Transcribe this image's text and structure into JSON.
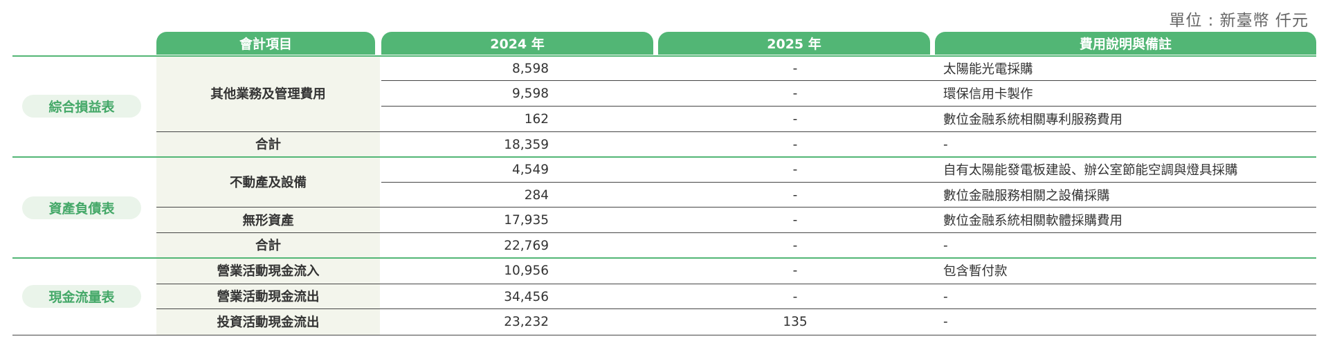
{
  "unit_label": "單位 : 新臺幣 仟元",
  "headers": {
    "item": "會計項目",
    "y2024": "2024 年",
    "y2025": "2025 年",
    "note": "費用說明與備註"
  },
  "sections": [
    {
      "label": "綜合損益表"
    },
    {
      "label": "資產負債表"
    },
    {
      "label": "現金流量表"
    }
  ],
  "items": [
    "其他業務及管理費用",
    "合計",
    "不動產及設備",
    "無形資產",
    "合計",
    "營業活動現金流入",
    "營業活動現金流出",
    "投資活動現金流出"
  ],
  "rows": [
    {
      "y2024": "8,598",
      "y2025": "-",
      "note": "太陽能光電採購"
    },
    {
      "y2024": "9,598",
      "y2025": "-",
      "note": "環保信用卡製作"
    },
    {
      "y2024": "162",
      "y2025": "-",
      "note": "數位金融系統相關專利服務費用"
    },
    {
      "y2024": "18,359",
      "y2025": "-",
      "note": "-"
    },
    {
      "y2024": "4,549",
      "y2025": "-",
      "note": "自有太陽能發電板建設、辦公室節能空調與燈具採購"
    },
    {
      "y2024": "284",
      "y2025": "-",
      "note": "數位金融服務相關之設備採購"
    },
    {
      "y2024": "17,935",
      "y2025": "-",
      "note": "數位金融系統相關軟體採購費用"
    },
    {
      "y2024": "22,769",
      "y2025": "-",
      "note": "-"
    },
    {
      "y2024": "10,956",
      "y2025": "-",
      "note": "包含暫付款"
    },
    {
      "y2024": "34,456",
      "y2025": "-",
      "note": "-"
    },
    {
      "y2024": "23,232",
      "y2025": "135",
      "note": "-"
    }
  ]
}
